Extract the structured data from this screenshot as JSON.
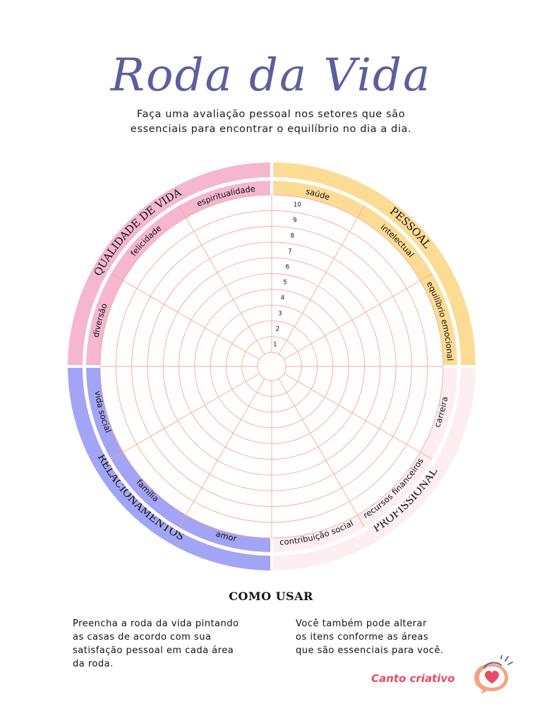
{
  "title": "Roda da Vida",
  "subtitle": [
    "Faça uma avaliação pessoal nos setores que são",
    "essenciais para encontrar o equilíbrio no dia a dia."
  ],
  "wheel": {
    "categories": [
      {
        "name": "PESSOAL",
        "color": "#fcdc94",
        "items": [
          "saúde",
          "intelectual",
          "equilíbrio emocional"
        ]
      },
      {
        "name": "PROFISSIONAL",
        "color": "#fdeef2",
        "items": [
          "carreira",
          "recursos financeiros",
          "contribuição social"
        ]
      },
      {
        "name": "RELACIONAMENTOS",
        "color": "#a4a4f6",
        "items": [
          "amor",
          "família",
          "vida social"
        ]
      },
      {
        "name": "QUALIDADE DE VIDA",
        "color": "#f5b6d0",
        "items": [
          "diversão",
          "felicidade",
          "espiritualidade"
        ]
      }
    ],
    "scale": [
      "1",
      "2",
      "3",
      "4",
      "5",
      "6",
      "7",
      "8",
      "9",
      "10"
    ],
    "grid_color": "#f6a98e"
  },
  "how_to_use": {
    "title": "COMO USAR",
    "left": [
      "Preencha a roda da vida pintando",
      "as casas de acordo com sua",
      "satisfação pessoal em cada área",
      "da roda."
    ],
    "right": [
      "Você também pode alterar",
      "os itens conforme as áreas",
      "que são essenciais para você."
    ]
  },
  "logo": {
    "text": "Canto criativo",
    "color": "#e94a68"
  }
}
